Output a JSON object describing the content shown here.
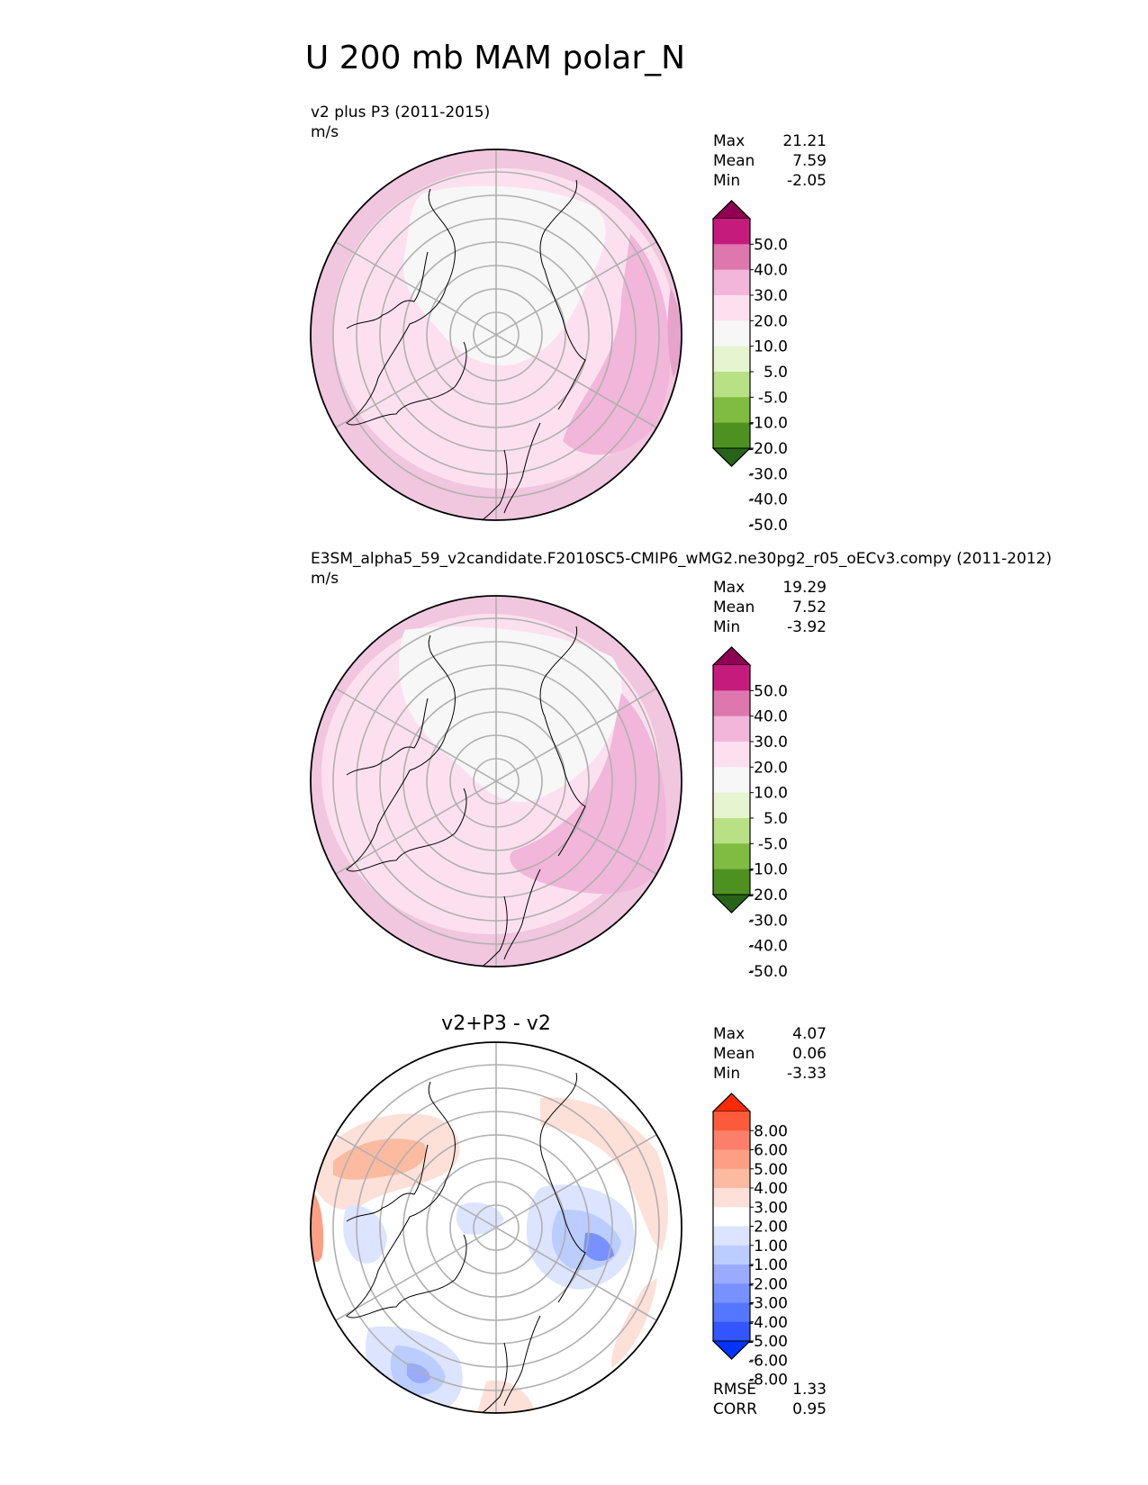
{
  "figure_title": "U 200 mb MAM polar_N",
  "colors": {
    "main_levels": [
      "#276419",
      "#4d9221",
      "#7fbc41",
      "#b8e186",
      "#e6f5d0",
      "#f7f7f7",
      "#fde0ef",
      "#f1b6da",
      "#de77ae",
      "#c51b7d",
      "#8e0152"
    ],
    "diff_levels": [
      "#0033ff",
      "#3355ff",
      "#5577ff",
      "#7791ff",
      "#99aaff",
      "#bbccff",
      "#dde4ff",
      "#ffffff",
      "#fde0d8",
      "#fcbba1",
      "#fc9f85",
      "#fb7f6a",
      "#fb5a3b",
      "#ff2a00"
    ],
    "grid": "#b0b0b0",
    "coast": "#000000"
  },
  "chart_data": [
    {
      "type": "heatmap",
      "projection": "north polar stereographic",
      "title_left": "v2 plus P3 (2011-2015)",
      "units": "m/s",
      "stats": {
        "Max": "21.21",
        "Mean": "7.59",
        "Min": "-2.05"
      },
      "colorbar_ticks": [
        "50.0",
        "40.0",
        "30.0",
        "20.0",
        "10.0",
        "5.0",
        "-5.0",
        "-10.0",
        "-20.0",
        "-30.0",
        "-40.0",
        "-50.0"
      ],
      "value_range": [
        -2.05,
        21.21
      ]
    },
    {
      "type": "heatmap",
      "projection": "north polar stereographic",
      "title_left": "E3SM_alpha5_59_v2candidate.F2010SC5-CMIP6_wMG2.ne30pg2_r05_oECv3.compy (2011-2012)",
      "units": "m/s",
      "stats": {
        "Max": "19.29",
        "Mean": "7.52",
        "Min": "-3.92"
      },
      "colorbar_ticks": [
        "50.0",
        "40.0",
        "30.0",
        "20.0",
        "10.0",
        "5.0",
        "-5.0",
        "-10.0",
        "-20.0",
        "-30.0",
        "-40.0",
        "-50.0"
      ],
      "value_range": [
        -3.92,
        19.29
      ]
    },
    {
      "type": "heatmap",
      "projection": "north polar stereographic",
      "title_center": "v2+P3 - v2",
      "stats": {
        "Max": "4.07",
        "Mean": "0.06",
        "Min": "-3.33"
      },
      "colorbar_ticks": [
        "8.00",
        "6.00",
        "5.00",
        "4.00",
        "3.00",
        "2.00",
        "1.00",
        "-1.00",
        "-2.00",
        "-3.00",
        "-4.00",
        "-5.00",
        "-6.00",
        "-8.00"
      ],
      "value_range": [
        -3.33,
        4.07
      ],
      "metrics": {
        "RMSE": "1.33",
        "CORR": "0.95"
      }
    }
  ]
}
